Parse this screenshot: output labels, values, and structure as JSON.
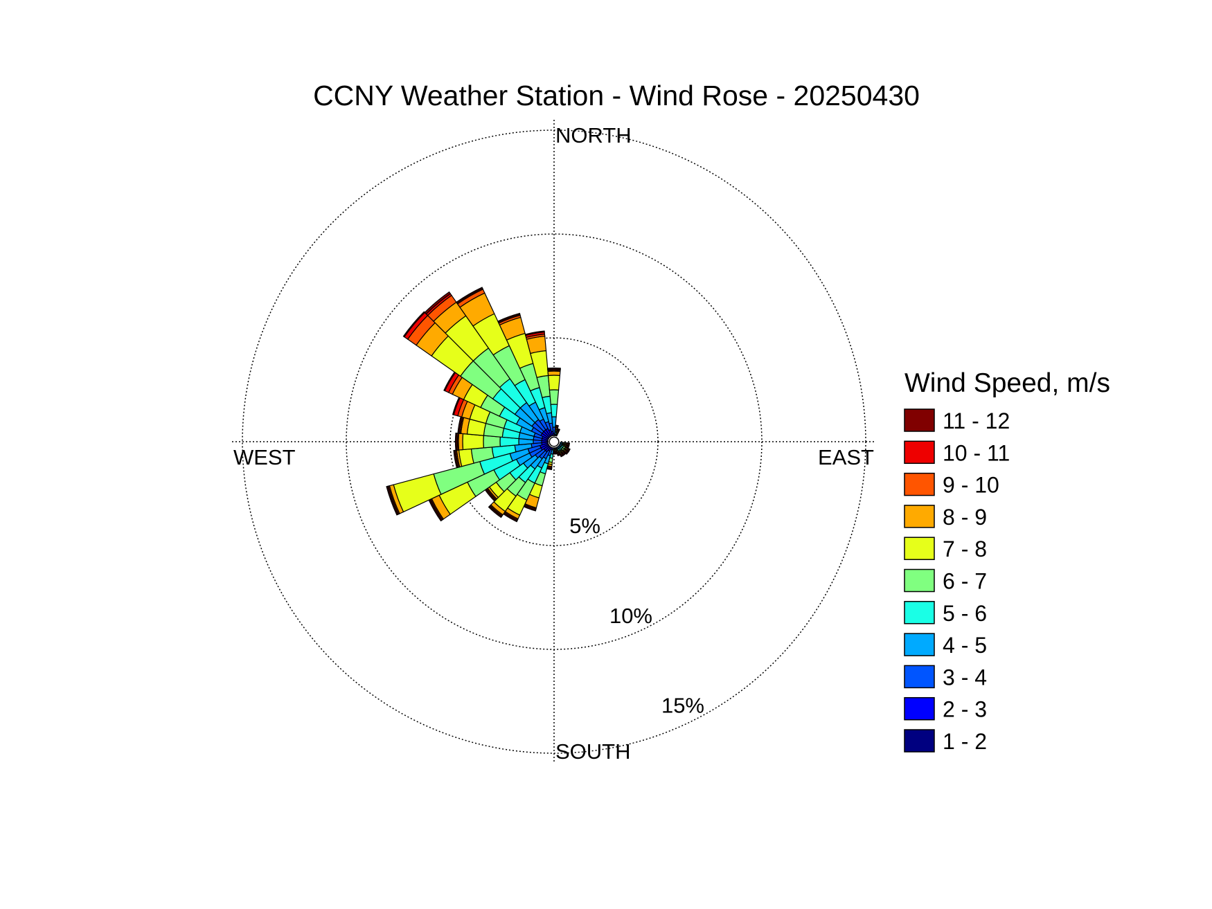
{
  "chart_data": {
    "type": "windrose",
    "title": "CCNY Weather Station - Wind Rose - 20250430",
    "compass": {
      "north": "NORTH",
      "south": "SOUTH",
      "east": "EAST",
      "west": "WEST"
    },
    "rings": [
      {
        "value": 5,
        "label": "5%"
      },
      {
        "value": 10,
        "label": "10%"
      },
      {
        "value": 15,
        "label": "15%"
      }
    ],
    "rmax": 15.5,
    "legend": {
      "title": "Wind Speed, m/s",
      "bins": [
        {
          "label": "11 - 12",
          "color": "#800000"
        },
        {
          "label": "10 - 11",
          "color": "#ee0000"
        },
        {
          "label": "9 - 10",
          "color": "#ff5500"
        },
        {
          "label": "8 - 9",
          "color": "#ffaa00"
        },
        {
          "label": "7 - 8",
          "color": "#e6ff1a"
        },
        {
          "label": "6 - 7",
          "color": "#80ff80"
        },
        {
          "label": "5 - 6",
          "color": "#1affe6"
        },
        {
          "label": "4 - 5",
          "color": "#00aaff"
        },
        {
          "label": "3 - 4",
          "color": "#0055ff"
        },
        {
          "label": "2 - 3",
          "color": "#0000ff"
        },
        {
          "label": "1 - 2",
          "color": "#000080"
        }
      ]
    },
    "sector_width_deg": 10,
    "calm_hole_radius_pct": 0.3,
    "sectors": [
      {
        "direction_deg": 180,
        "cumulative_pct": [
          0.1,
          0.15,
          0.2,
          0.25,
          0.3,
          0.35,
          0.4,
          0.45,
          0.5,
          0.55,
          0.6
        ]
      },
      {
        "direction_deg": 190,
        "cumulative_pct": [
          0.15,
          0.25,
          0.4,
          0.6,
          0.8,
          1.0,
          1.1,
          1.2,
          1.25,
          1.3,
          1.35
        ]
      },
      {
        "direction_deg": 200,
        "cumulative_pct": [
          0.2,
          0.4,
          0.7,
          1.1,
          1.6,
          2.2,
          2.8,
          3.3,
          3.35,
          3.4,
          3.45
        ]
      },
      {
        "direction_deg": 210,
        "cumulative_pct": [
          0.2,
          0.5,
          0.9,
          1.4,
          2.2,
          3.1,
          3.9,
          4.1,
          4.15,
          4.2,
          4.25
        ]
      },
      {
        "direction_deg": 220,
        "cumulative_pct": [
          0.3,
          0.6,
          1.0,
          1.6,
          2.4,
          3.2,
          4.1,
          4.3,
          4.35,
          4.4,
          4.45
        ]
      },
      {
        "direction_deg": 230,
        "cumulative_pct": [
          0.3,
          0.6,
          1.1,
          1.8,
          2.6,
          3.4,
          3.8,
          3.9,
          3.95,
          4.0,
          4.05
        ]
      },
      {
        "direction_deg": 240,
        "cumulative_pct": [
          0.3,
          0.7,
          1.3,
          2.0,
          3.2,
          4.6,
          6.1,
          6.5,
          6.55,
          6.6,
          6.65
        ]
      },
      {
        "direction_deg": 250,
        "cumulative_pct": [
          0.3,
          0.7,
          1.3,
          2.2,
          3.7,
          6.0,
          8.0,
          8.2,
          8.25,
          8.3,
          8.35
        ]
      },
      {
        "direction_deg": 260,
        "cumulative_pct": [
          0.3,
          0.6,
          1.1,
          1.9,
          3.0,
          4.0,
          4.6,
          4.7,
          4.75,
          4.8,
          4.85
        ]
      },
      {
        "direction_deg": 270,
        "cumulative_pct": [
          0.3,
          0.6,
          1.0,
          1.7,
          2.6,
          3.4,
          4.4,
          4.6,
          4.65,
          4.7,
          4.75
        ]
      },
      {
        "direction_deg": 280,
        "cumulative_pct": [
          0.3,
          0.6,
          1.0,
          1.7,
          2.5,
          3.4,
          4.2,
          4.5,
          4.55,
          4.6,
          4.65
        ]
      },
      {
        "direction_deg": 290,
        "cumulative_pct": [
          0.3,
          0.6,
          1.0,
          1.7,
          2.5,
          3.4,
          4.2,
          4.6,
          4.8,
          5.0,
          5.05
        ]
      },
      {
        "direction_deg": 300,
        "cumulative_pct": [
          0.3,
          0.7,
          1.2,
          2.0,
          2.9,
          3.9,
          4.8,
          5.4,
          5.6,
          5.8,
          5.85
        ]
      },
      {
        "direction_deg": 310,
        "cumulative_pct": [
          0.3,
          0.7,
          1.3,
          2.3,
          3.6,
          5.5,
          7.2,
          8.1,
          8.6,
          8.8,
          8.85
        ]
      },
      {
        "direction_deg": 320,
        "cumulative_pct": [
          0.3,
          0.7,
          1.3,
          2.3,
          3.7,
          5.5,
          7.4,
          8.2,
          8.6,
          8.7,
          8.8
        ]
      },
      {
        "direction_deg": 330,
        "cumulative_pct": [
          0.3,
          0.7,
          1.2,
          2.1,
          3.3,
          5.1,
          6.8,
          7.9,
          8.1,
          8.15,
          8.2
        ]
      },
      {
        "direction_deg": 340,
        "cumulative_pct": [
          0.3,
          0.6,
          1.0,
          1.7,
          2.7,
          3.9,
          5.4,
          6.2,
          6.3,
          6.35,
          6.4
        ]
      },
      {
        "direction_deg": 350,
        "cumulative_pct": [
          0.25,
          0.5,
          0.9,
          1.4,
          2.2,
          3.2,
          4.4,
          5.1,
          5.2,
          5.3,
          5.35
        ]
      },
      {
        "direction_deg": 0,
        "cumulative_pct": [
          0.2,
          0.4,
          0.7,
          1.2,
          1.8,
          2.5,
          3.2,
          3.4,
          3.45,
          3.5,
          3.55
        ]
      },
      {
        "direction_deg": 10,
        "cumulative_pct": [
          0.15,
          0.25,
          0.35,
          0.45,
          0.5,
          0.55,
          0.6,
          0.65,
          0.7,
          0.75,
          0.8
        ]
      },
      {
        "direction_deg": 20,
        "cumulative_pct": [
          0.1,
          0.15,
          0.2,
          0.3,
          0.35,
          0.4,
          0.45,
          0.5,
          0.55,
          0.6,
          0.65
        ]
      },
      {
        "direction_deg": 100,
        "cumulative_pct": [
          0.1,
          0.2,
          0.3,
          0.4,
          0.45,
          0.5,
          0.55,
          0.6,
          0.65,
          0.7,
          0.75
        ]
      },
      {
        "direction_deg": 110,
        "cumulative_pct": [
          0.1,
          0.2,
          0.3,
          0.4,
          0.45,
          0.5,
          0.55,
          0.6,
          0.65,
          0.7,
          0.75
        ]
      },
      {
        "direction_deg": 120,
        "cumulative_pct": [
          0.1,
          0.2,
          0.3,
          0.4,
          0.5,
          0.6,
          0.65,
          0.7,
          0.75,
          0.8,
          0.85
        ]
      },
      {
        "direction_deg": 130,
        "cumulative_pct": [
          0.1,
          0.2,
          0.3,
          0.4,
          0.5,
          0.6,
          0.65,
          0.7,
          0.75,
          0.8,
          0.85
        ]
      },
      {
        "direction_deg": 140,
        "cumulative_pct": [
          0.1,
          0.2,
          0.3,
          0.4,
          0.5,
          0.55,
          0.6,
          0.65,
          0.7,
          0.75,
          0.8
        ]
      },
      {
        "direction_deg": 150,
        "cumulative_pct": [
          0.1,
          0.2,
          0.3,
          0.4,
          0.5,
          0.55,
          0.6,
          0.65,
          0.7,
          0.75,
          0.8
        ]
      },
      {
        "direction_deg": 160,
        "cumulative_pct": [
          0.1,
          0.2,
          0.3,
          0.35,
          0.4,
          0.45,
          0.5,
          0.55,
          0.6,
          0.65,
          0.7
        ]
      },
      {
        "direction_deg": 170,
        "cumulative_pct": [
          0.1,
          0.15,
          0.2,
          0.25,
          0.3,
          0.35,
          0.4,
          0.45,
          0.5,
          0.55,
          0.6
        ]
      }
    ]
  }
}
